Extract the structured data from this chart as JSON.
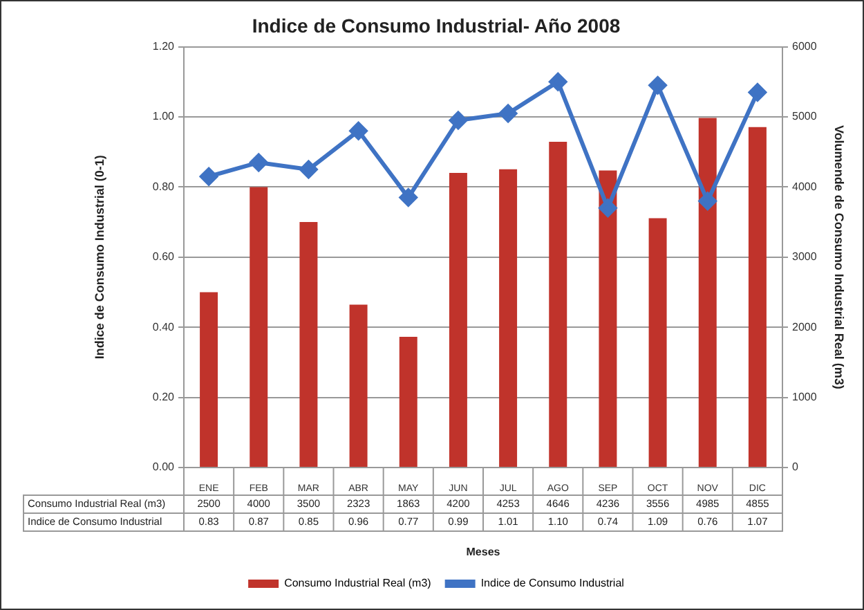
{
  "chart_data": {
    "type": "bar",
    "title": "Indice de Consumo Industrial- Año 2008",
    "xlabel": "Meses",
    "ylabel": "Indice de Consumo Industrial (0-1)",
    "y2label": "Volumende de Consumo Industrial Real (m3)",
    "categories": [
      "ENE",
      "FEB",
      "MAR",
      "ABR",
      "MAY",
      "JUN",
      "JUL",
      "AGO",
      "SEP",
      "OCT",
      "NOV",
      "DIC"
    ],
    "series": [
      {
        "name": "Consumo Industrial Real (m3)",
        "axis": "y2",
        "color": "#c0332b",
        "values": [
          2500,
          4000,
          3500,
          2323,
          1863,
          4200,
          4253,
          4646,
          4236,
          3556,
          4985,
          4855
        ]
      },
      {
        "name": "Indice de Consumo Industrial",
        "type": "line",
        "axis": "y",
        "color": "#3f73c4",
        "marker": "diamond",
        "values": [
          0.83,
          0.87,
          0.85,
          0.96,
          0.77,
          0.99,
          1.01,
          1.1,
          0.74,
          1.09,
          0.76,
          1.07
        ],
        "value_labels": [
          "0.83",
          "0.87",
          "0.85",
          "0.96",
          "0.77",
          "0.99",
          "1.01",
          "1.10",
          "0.74",
          "1.09",
          "0.76",
          "1.07"
        ]
      }
    ],
    "ylim": [
      0,
      1.2
    ],
    "yticks": [
      {
        "value": 0,
        "label": "0.00"
      },
      {
        "value": 0.2,
        "label": "0.20"
      },
      {
        "value": 0.4,
        "label": "0.40"
      },
      {
        "value": 0.6,
        "label": "0.60"
      },
      {
        "value": 0.8,
        "label": "0.80"
      },
      {
        "value": 1,
        "label": "1.00"
      },
      {
        "value": 1.2,
        "label": "1.20"
      }
    ],
    "y2lim": [
      0,
      6000
    ],
    "y2ticks": [
      0,
      1000,
      2000,
      3000,
      4000,
      5000,
      6000
    ],
    "grid": "y",
    "legend": "bottom",
    "data_labels": true
  }
}
